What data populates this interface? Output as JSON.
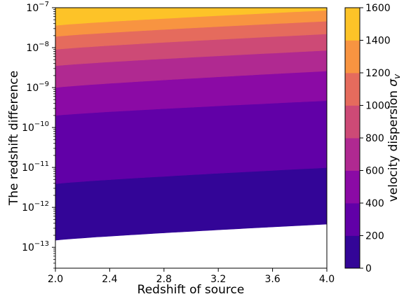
{
  "chart_data": {
    "type": "contourf",
    "xlabel": "Redshift of source",
    "ylabel": "The redshift difference",
    "x_ticks": [
      "2.0",
      "2.4",
      "2.8",
      "3.2",
      "3.6",
      "4.0"
    ],
    "x_tick_values": [
      2.0,
      2.4,
      2.8,
      3.2,
      3.6,
      4.0
    ],
    "xlim": [
      2.0,
      4.0
    ],
    "y_scale": "log",
    "ylim": [
      3e-14,
      1e-07
    ],
    "y_ticks": [
      {
        "value": 1e-07,
        "base": "10",
        "exp": "−7"
      },
      {
        "value": 1e-08,
        "base": "10",
        "exp": "−8"
      },
      {
        "value": 1e-09,
        "base": "10",
        "exp": "−9"
      },
      {
        "value": 1e-10,
        "base": "10",
        "exp": "−10"
      },
      {
        "value": 1e-11,
        "base": "10",
        "exp": "−11"
      },
      {
        "value": 1e-12,
        "base": "10",
        "exp": "−12"
      },
      {
        "value": 1e-13,
        "base": "10",
        "exp": "−13"
      }
    ],
    "colorbar": {
      "label_prefix": "velocity dispersion ",
      "label_symbol": "σ",
      "label_subscript": "v",
      "levels": [
        0,
        200,
        400,
        600,
        800,
        1000,
        1200,
        1400,
        1600
      ],
      "tick_labels": [
        "0",
        "200",
        "400",
        "600",
        "800",
        "1000",
        "1200",
        "1400",
        "1600"
      ],
      "colors": [
        "#330597",
        "#6100a7",
        "#8b0aa5",
        "#b02991",
        "#cd4a76",
        "#e56b5d",
        "#f89441",
        "#fdc328",
        "#f0f921"
      ]
    },
    "contour_levels": [
      {
        "sigma": 200,
        "left": 1.5e-13,
        "right": 3.8e-13
      },
      {
        "sigma": 400,
        "left": 3.9e-12,
        "right": 9.9e-12
      },
      {
        "sigma": 600,
        "left": 2e-10,
        "right": 4.7e-10
      },
      {
        "sigma": 800,
        "left": 1e-09,
        "right": 2.6e-09
      },
      {
        "sigma": 1000,
        "left": 3.5e-09,
        "right": 8.5e-09
      },
      {
        "sigma": 1200,
        "left": 9e-09,
        "right": 2.2e-08
      },
      {
        "sigma": 1400,
        "left": 1.9e-08,
        "right": 4.6e-08
      },
      {
        "sigma": 1600,
        "left": 3.6e-08,
        "right": 8.6e-08
      }
    ],
    "grid": false
  }
}
